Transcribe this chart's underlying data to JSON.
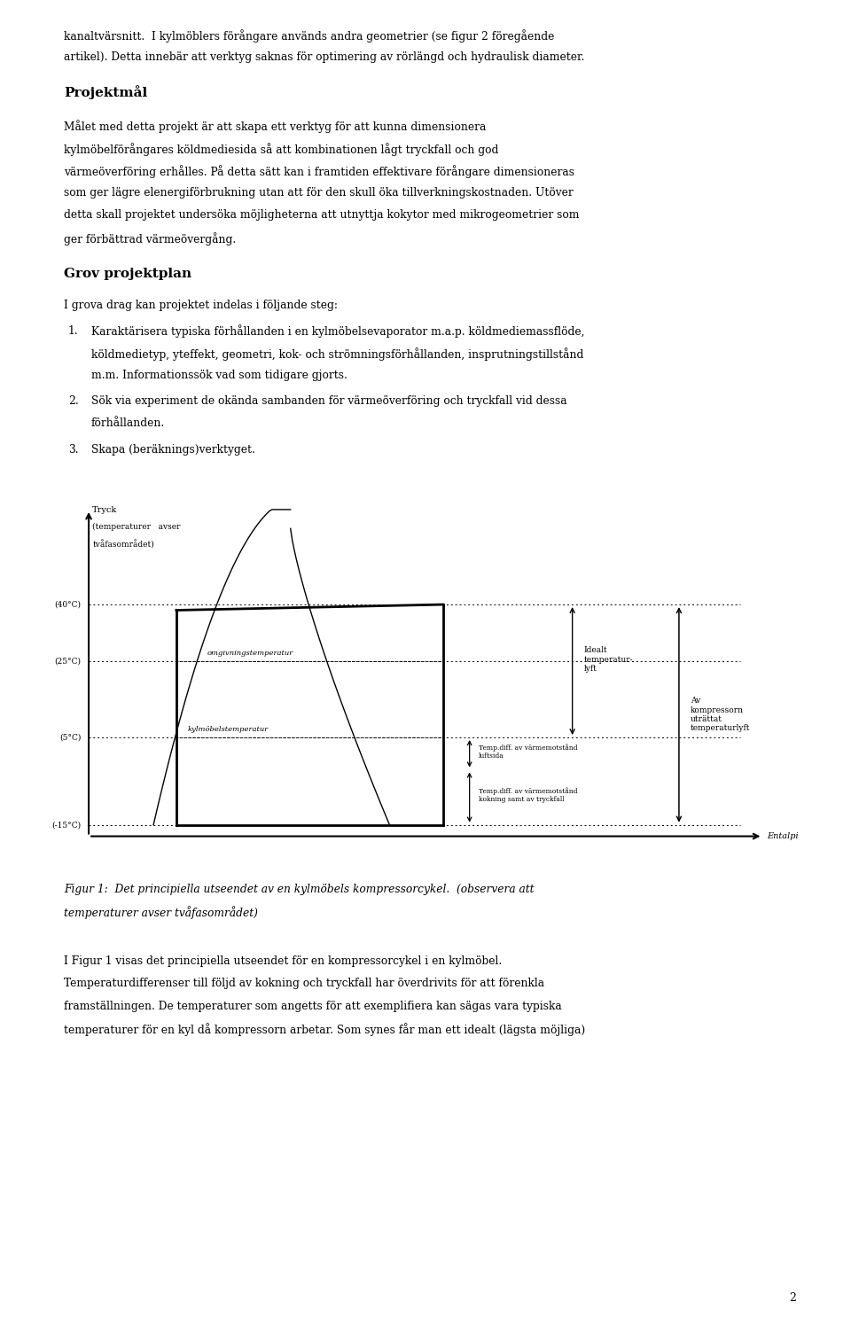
{
  "bg_color": "#ffffff",
  "text_color": "#000000",
  "page_width": 9.6,
  "page_height": 15.04,
  "top_text_lines": [
    "kanaltvärsnitt.  I kylmöblers förångare används andra geometrier (se figur 2 föregående",
    "artikel). Detta innebär att verktyg saknas för optimering av rörlängd och hydraulisk diameter."
  ],
  "heading1": "Projektmål",
  "para1_lines": [
    "Målet med detta projekt är att skapa ett verktyg för att kunna dimensionera",
    "kylmöbelförångares köldmediesida så att kombinationen lågt tryckfall och god",
    "värmeöverföring erhålles. På detta sätt kan i framtiden effektivare förångare dimensioneras",
    "som ger lägre elenergiförbrukning utan att för den skull öka tillverkningskostnaden. Utöver",
    "detta skall projektet undersöka möjligheterna att utnyttja kokytor med mikrogeometrier som",
    "ger förbättrad värmeövergång."
  ],
  "heading2": "Grov projektplan",
  "intro2": "I grova drag kan projektet indelas i följande steg:",
  "item1_lines": [
    "Karaktärisera typiska förhållanden i en kylmöbelsevaporator m.a.p. köldmediemassflöde,",
    "köldmedietyp, yteffekt, geometri, kok- och strömningsförhållanden, insprutningstillstånd",
    "m.m. Informationssök vad som tidigare gjorts."
  ],
  "item2_lines": [
    "Sök via experiment de okända sambanden för värmeöverföring och tryckfall vid dessa",
    "förhållanden."
  ],
  "item3_lines": [
    "Skapa (beräknings)verktyget."
  ],
  "fig_caption_line1": "Figur 1:  Det principiella utseendet av en kylmöbels kompressorcykel.  (observera att",
  "fig_caption_line2": "temperaturer avser tvåfasområdet)",
  "bottom_para_lines": [
    "I Figur 1 visas det principiella utseendet för en kompressorcykel i en kylmöbel.",
    "Temperaturdifferenser till följd av kokning och tryckfall har överdrivits för att förenkla",
    "framställningen. De temperaturer som angetts för att exemplifiera kan sägas vara typiska",
    "temperaturer för en kyl då kompressorn arbetar. Som synes får man ett idealt (lägsta möjliga)"
  ],
  "page_number": "2"
}
